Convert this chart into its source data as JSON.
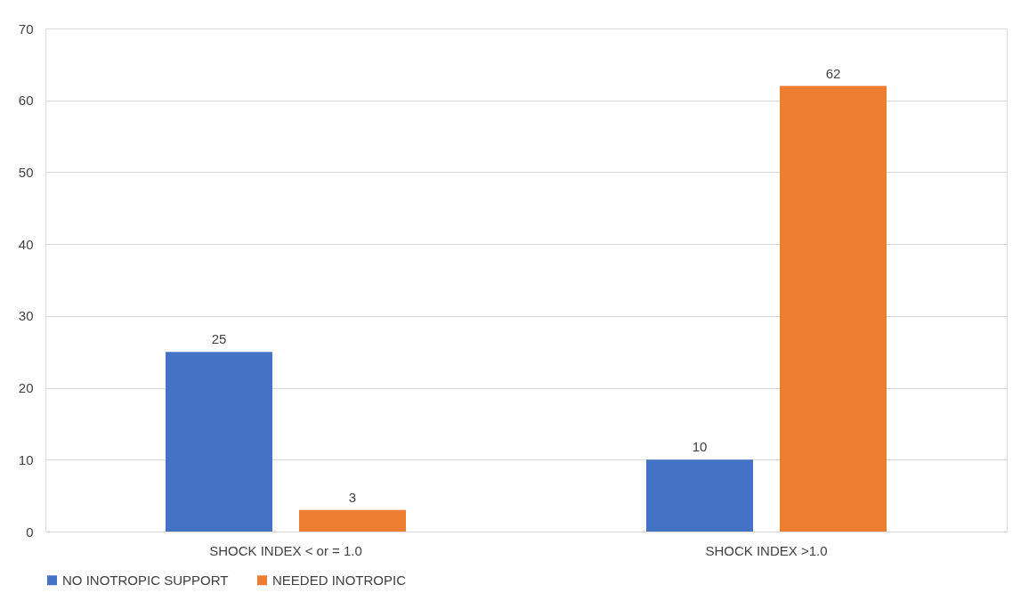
{
  "chart_data": {
    "type": "bar",
    "categories": [
      "SHOCK INDEX < or = 1.0",
      "SHOCK INDEX >1.0"
    ],
    "series": [
      {
        "name": "NO INOTROPIC SUPPORT",
        "color": "#4472c4",
        "values": [
          25,
          10
        ]
      },
      {
        "name": "NEEDED INOTROPIC",
        "color": "#ed7d31",
        "values": [
          3,
          62
        ]
      }
    ],
    "ylim": [
      0,
      70
    ],
    "yticks": [
      0,
      10,
      20,
      30,
      40,
      50,
      60,
      70
    ],
    "grid": "y",
    "legend": "bottom",
    "data_labels": true
  }
}
